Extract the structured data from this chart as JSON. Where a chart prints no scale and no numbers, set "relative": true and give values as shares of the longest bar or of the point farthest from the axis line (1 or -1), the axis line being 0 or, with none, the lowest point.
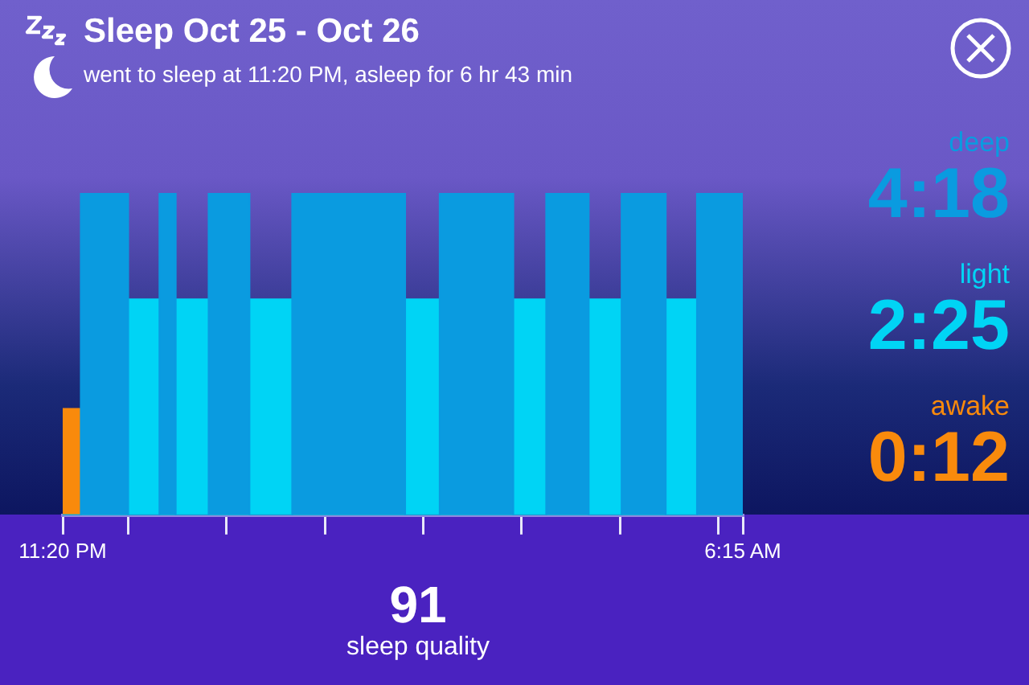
{
  "chart_data": {
    "type": "area",
    "title": "Sleep Oct 25 - Oct 26",
    "subtitle": "went to sleep at 11:20 PM, asleep for 6 hr 43 min",
    "relative": true,
    "x": [
      "--10-25T23:20",
      "--10-25T23:20",
      "--10-25T23:31",
      "--10-25T23:31",
      "--10-26T00:00",
      "--10-26T00:00",
      "--10-26T00:19",
      "--10-26T00:19",
      "--10-26T00:29",
      "--10-26T00:29",
      "--10-26T00:49",
      "--10-26T00:49",
      "--10-26T01:14",
      "--10-26T01:14",
      "--10-26T01:40",
      "--10-26T01:40",
      "--10-26T02:49",
      "--10-26T02:49",
      "--10-26T03:10",
      "--10-26T03:10",
      "--10-26T03:55",
      "--10-26T03:55",
      "--10-26T04:15",
      "--10-26T04:15",
      "--10-26T04:41",
      "--10-26T04:41",
      "--10-26T05:01",
      "--10-26T05:01",
      "--10-26T05:28",
      "--10-26T05:28",
      "--10-26T05:47",
      "--10-26T05:47",
      "--10-26T06:15",
      "--10-26T06:15"
    ],
    "series": [
      {
        "name": "deep",
        "color": "#0a9be0",
        "values": [
          0,
          0,
          0,
          1,
          1,
          0,
          0,
          1,
          1,
          0,
          0,
          1,
          1,
          0,
          0,
          1,
          1,
          0,
          0,
          1,
          1,
          0,
          0,
          1,
          1,
          0,
          0,
          1,
          1,
          0,
          0,
          1,
          1,
          0
        ]
      },
      {
        "name": "light",
        "color": "#00d4f5",
        "values": [
          0,
          0,
          0,
          0,
          0,
          0.67,
          0.67,
          0,
          0,
          0.67,
          0.67,
          0,
          0,
          0.67,
          0.67,
          0,
          0,
          0.67,
          0.67,
          0,
          0,
          0.67,
          0.67,
          0,
          0,
          0.67,
          0.67,
          0,
          0,
          0.67,
          0.67,
          0,
          0,
          0
        ]
      },
      {
        "name": "awake",
        "color": "#f98a0c",
        "values": [
          0,
          0.33,
          0.33,
          0,
          0,
          0,
          0,
          0,
          0,
          0,
          0,
          0,
          0,
          0,
          0,
          0,
          0,
          0,
          0,
          0,
          0,
          0,
          0,
          0,
          0,
          0,
          0,
          0,
          0,
          0,
          0,
          0,
          0,
          0
        ]
      }
    ],
    "xlim": [
      "--10-25T23:20",
      "--10-26T06:15"
    ],
    "xticks": [
      {
        "value": "--10-25T23:20",
        "label": "11:20 PM"
      },
      {
        "value": "--10-26T00:00",
        "label": null
      },
      {
        "value": "--10-26T01:00",
        "label": null
      },
      {
        "value": "--10-26T02:00",
        "label": null
      },
      {
        "value": "--10-26T03:00",
        "label": null
      },
      {
        "value": "--10-26T04:00",
        "label": null
      },
      {
        "value": "--10-26T05:00",
        "label": null
      },
      {
        "value": "--10-26T06:00",
        "label": null
      },
      {
        "value": "--10-26T06:15",
        "label": "6:15 AM"
      }
    ],
    "annotations": [
      "4:18",
      "2:25",
      "0:12",
      "91",
      "sleep quality"
    ]
  }
}
